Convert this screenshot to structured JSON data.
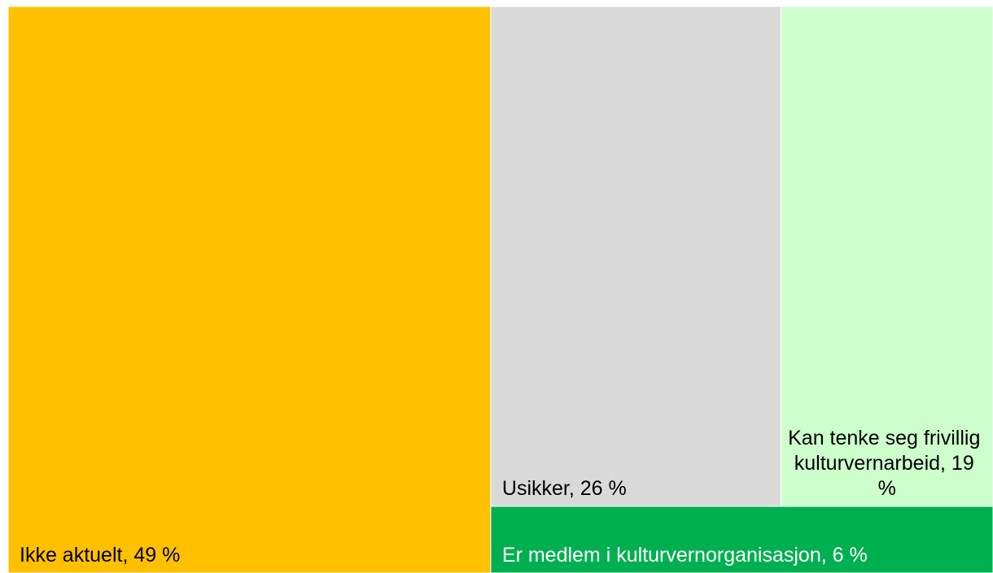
{
  "chart_data": {
    "type": "treemap",
    "labels": [
      "Ikke aktuelt, 49 %",
      "Usikker, 26 %",
      "Kan tenke seg frivillig kulturvernarbeid, 19 %",
      "Er medlem i kulturvernorganisasjon, 6 %"
    ],
    "values": [
      49,
      26,
      19,
      6
    ],
    "colors": [
      "#ffc000",
      "#d9d9d9",
      "#ccffcc",
      "#00b050"
    ]
  }
}
